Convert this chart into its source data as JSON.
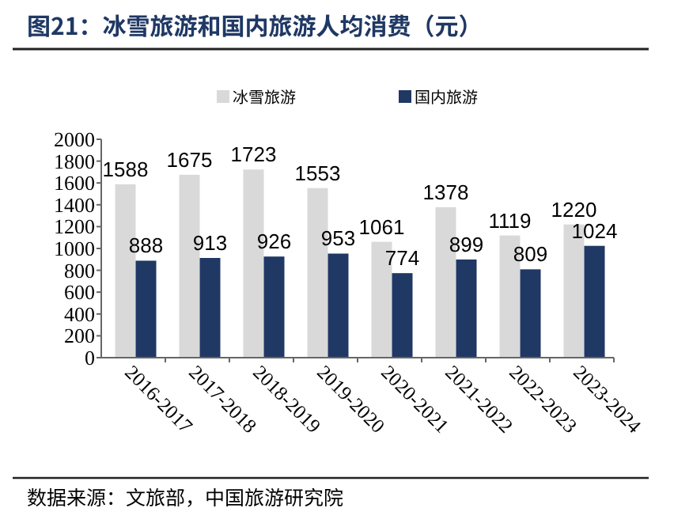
{
  "chart_data": {
    "type": "bar",
    "title": "图21：冰雪旅游和国内旅游人均消费（元）",
    "categories": [
      "2016-2017",
      "2017-2018",
      "2018-2019",
      "2019-2020",
      "2020-2021",
      "2021-2022",
      "2022-2023",
      "2023-2024"
    ],
    "series": [
      {
        "name": "冰雪旅游",
        "color": "#d9d9d9",
        "values": [
          1588,
          1675,
          1723,
          1553,
          1061,
          1378,
          1119,
          1220
        ]
      },
      {
        "name": "国内旅游",
        "color": "#1f3864",
        "values": [
          888,
          913,
          926,
          953,
          774,
          899,
          809,
          1024
        ]
      }
    ],
    "ylim": [
      0,
      2000
    ],
    "yticks": [
      0,
      200,
      400,
      600,
      800,
      1000,
      1200,
      1400,
      1600,
      1800,
      2000
    ],
    "data_labels": true,
    "legend": "top",
    "grid": false,
    "annotations": [
      "数据来源：文旅部，中国旅游研究院"
    ]
  }
}
